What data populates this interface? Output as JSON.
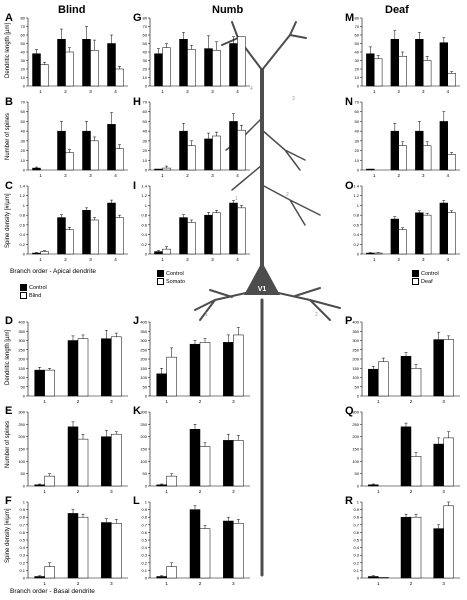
{
  "columns": [
    "Blind",
    "Numb",
    "Deaf"
  ],
  "ylabels": {
    "apical": [
      "Dendritic length [µm]",
      "Number of spines",
      "Spine density [#/µm]"
    ],
    "basal": [
      "Dendritic length [µm]",
      "Number of spines",
      "Spine density [#/µm]"
    ]
  },
  "xlabels": {
    "apical": "Branch order - Apical dendrite",
    "basal": "Branch order - Basal dendrite"
  },
  "legends": {
    "blind": [
      "Control",
      "Blind"
    ],
    "numb": [
      "Control",
      "Somato"
    ],
    "deaf": [
      "Control",
      "Deaf"
    ]
  },
  "neuron_label": "V1",
  "colors": {
    "control": "#000000",
    "treated": "#ffffff",
    "neuron": "#4d4d4d"
  },
  "chart_data": [
    {
      "id": "A",
      "type": "bar",
      "categories": [
        "1",
        "2",
        "3",
        "4"
      ],
      "ylim": [
        0,
        80
      ],
      "ticks": [
        0,
        10,
        20,
        30,
        40,
        50,
        60,
        70,
        80
      ],
      "series": [
        {
          "name": "Control",
          "values": [
            38,
            55,
            55,
            50
          ],
          "err": [
            5,
            12,
            15,
            10
          ]
        },
        {
          "name": "Blind",
          "values": [
            25,
            40,
            42,
            20
          ],
          "err": [
            3,
            5,
            12,
            3
          ]
        }
      ]
    },
    {
      "id": "B",
      "type": "bar",
      "categories": [
        "1",
        "2",
        "3",
        "4"
      ],
      "ylim": [
        0,
        70
      ],
      "ticks": [
        0,
        10,
        20,
        30,
        40,
        50,
        60,
        70
      ],
      "series": [
        {
          "name": "Control",
          "values": [
            2,
            40,
            40,
            47
          ],
          "err": [
            1,
            10,
            10,
            12
          ]
        },
        {
          "name": "Blind",
          "values": [
            0,
            18,
            30,
            22
          ],
          "err": [
            0,
            3,
            4,
            4
          ]
        }
      ]
    },
    {
      "id": "C",
      "type": "bar",
      "categories": [
        "1",
        "2",
        "3",
        "4"
      ],
      "ylim": [
        0,
        1.4
      ],
      "ticks": [
        0,
        0.2,
        0.4,
        0.6,
        0.8,
        1.0,
        1.2,
        1.4
      ],
      "series": [
        {
          "name": "Control",
          "values": [
            0.02,
            0.75,
            0.9,
            1.05
          ],
          "err": [
            0.01,
            0.06,
            0.05,
            0.06
          ]
        },
        {
          "name": "Blind",
          "values": [
            0.05,
            0.5,
            0.7,
            0.75
          ],
          "err": [
            0.02,
            0.05,
            0.05,
            0.05
          ]
        }
      ]
    },
    {
      "id": "G",
      "type": "bar",
      "categories": [
        "1",
        "2",
        "3",
        "4"
      ],
      "ylim": [
        0,
        80
      ],
      "ticks": [
        0,
        10,
        20,
        30,
        40,
        50,
        60,
        70,
        80
      ],
      "series": [
        {
          "name": "Control",
          "values": [
            38,
            55,
            44,
            50
          ],
          "err": [
            6,
            8,
            15,
            8
          ]
        },
        {
          "name": "Somato",
          "values": [
            45,
            43,
            42,
            58
          ],
          "err": [
            5,
            5,
            10,
            0
          ]
        }
      ]
    },
    {
      "id": "H",
      "type": "bar",
      "categories": [
        "1",
        "2",
        "3",
        "4"
      ],
      "ylim": [
        0,
        70
      ],
      "ticks": [
        0,
        10,
        20,
        30,
        40,
        50,
        60,
        70
      ],
      "series": [
        {
          "name": "Control",
          "values": [
            1,
            40,
            32,
            50
          ],
          "err": [
            0,
            8,
            6,
            8
          ]
        },
        {
          "name": "Somato",
          "values": [
            2,
            25,
            35,
            41
          ],
          "err": [
            2,
            5,
            4,
            5
          ]
        }
      ]
    },
    {
      "id": "I",
      "type": "bar",
      "categories": [
        "1",
        "2",
        "3",
        "4"
      ],
      "ylim": [
        0,
        1.4
      ],
      "ticks": [
        0,
        0.2,
        0.4,
        0.6,
        0.8,
        1.0,
        1.2,
        1.4
      ],
      "series": [
        {
          "name": "Control",
          "values": [
            0.05,
            0.75,
            0.8,
            1.05
          ],
          "err": [
            0.02,
            0.06,
            0.06,
            0.05
          ]
        },
        {
          "name": "Somato",
          "values": [
            0.1,
            0.65,
            0.85,
            0.95
          ],
          "err": [
            0.05,
            0.05,
            0.05,
            0.05
          ]
        }
      ]
    },
    {
      "id": "M",
      "type": "bar",
      "categories": [
        "1",
        "2",
        "3",
        "4"
      ],
      "ylim": [
        0,
        80
      ],
      "ticks": [
        0,
        10,
        20,
        30,
        40,
        50,
        60,
        70,
        80
      ],
      "series": [
        {
          "name": "Control",
          "values": [
            38,
            55,
            55,
            51
          ],
          "err": [
            8,
            10,
            8,
            6
          ]
        },
        {
          "name": "Deaf",
          "values": [
            32,
            35,
            30,
            15
          ],
          "err": [
            4,
            5,
            5,
            2
          ]
        }
      ]
    },
    {
      "id": "N",
      "type": "bar",
      "categories": [
        "1",
        "2",
        "3",
        "4"
      ],
      "ylim": [
        0,
        70
      ],
      "ticks": [
        0,
        10,
        20,
        30,
        40,
        50,
        60,
        70
      ],
      "series": [
        {
          "name": "Control",
          "values": [
            1,
            40,
            40,
            50
          ],
          "err": [
            0,
            8,
            10,
            10
          ]
        },
        {
          "name": "Deaf",
          "values": [
            0,
            25,
            25,
            16
          ],
          "err": [
            0,
            4,
            4,
            2
          ]
        }
      ]
    },
    {
      "id": "O",
      "type": "bar",
      "categories": [
        "1",
        "2",
        "3",
        "4"
      ],
      "ylim": [
        0,
        1.4
      ],
      "ticks": [
        0,
        0.2,
        0.4,
        0.6,
        0.8,
        1.0,
        1.2,
        1.4
      ],
      "series": [
        {
          "name": "Control",
          "values": [
            0.02,
            0.72,
            0.85,
            1.05
          ],
          "err": [
            0.01,
            0.05,
            0.04,
            0.05
          ]
        },
        {
          "name": "Deaf",
          "values": [
            0.02,
            0.5,
            0.8,
            0.85
          ],
          "err": [
            0.01,
            0.04,
            0.04,
            0.04
          ]
        }
      ]
    },
    {
      "id": "D",
      "type": "bar",
      "categories": [
        "1",
        "2",
        "3"
      ],
      "ylim": [
        0,
        400
      ],
      "ticks": [
        0,
        50,
        100,
        150,
        200,
        250,
        300,
        350,
        400
      ],
      "series": [
        {
          "name": "Control",
          "values": [
            140,
            300,
            310
          ],
          "err": [
            15,
            25,
            45
          ]
        },
        {
          "name": "Blind",
          "values": [
            140,
            310,
            320
          ],
          "err": [
            10,
            20,
            20
          ]
        }
      ]
    },
    {
      "id": "E",
      "type": "bar",
      "categories": [
        "1",
        "2",
        "3"
      ],
      "ylim": [
        0,
        300
      ],
      "ticks": [
        0,
        50,
        100,
        150,
        200,
        250,
        300
      ],
      "series": [
        {
          "name": "Control",
          "values": [
            5,
            240,
            200
          ],
          "err": [
            3,
            20,
            25
          ]
        },
        {
          "name": "Blind",
          "values": [
            40,
            190,
            210
          ],
          "err": [
            10,
            20,
            10
          ]
        }
      ]
    },
    {
      "id": "F",
      "type": "bar",
      "categories": [
        "1",
        "2",
        "3"
      ],
      "ylim": [
        0,
        1
      ],
      "ticks": [
        0,
        0.1,
        0.2,
        0.3,
        0.4,
        0.5,
        0.6,
        0.7,
        0.8,
        0.9,
        1.0
      ],
      "series": [
        {
          "name": "Control",
          "values": [
            0.02,
            0.85,
            0.73
          ],
          "err": [
            0.01,
            0.05,
            0.05
          ]
        },
        {
          "name": "Blind",
          "values": [
            0.15,
            0.8,
            0.72
          ],
          "err": [
            0.05,
            0.04,
            0.05
          ]
        }
      ]
    },
    {
      "id": "J",
      "type": "bar",
      "categories": [
        "1",
        "2",
        "3"
      ],
      "ylim": [
        0,
        400
      ],
      "ticks": [
        0,
        50,
        100,
        150,
        200,
        250,
        300,
        350,
        400
      ],
      "series": [
        {
          "name": "Control",
          "values": [
            120,
            280,
            290
          ],
          "err": [
            30,
            20,
            40
          ]
        },
        {
          "name": "Somato",
          "values": [
            210,
            290,
            330
          ],
          "err": [
            50,
            20,
            40
          ]
        }
      ]
    },
    {
      "id": "K",
      "type": "bar",
      "categories": [
        "1",
        "2",
        "3"
      ],
      "ylim": [
        0,
        300
      ],
      "ticks": [
        0,
        50,
        100,
        150,
        200,
        250,
        300
      ],
      "series": [
        {
          "name": "Control",
          "values": [
            5,
            230,
            185
          ],
          "err": [
            3,
            20,
            25
          ]
        },
        {
          "name": "Somato",
          "values": [
            40,
            160,
            185
          ],
          "err": [
            10,
            15,
            20
          ]
        }
      ]
    },
    {
      "id": "L",
      "type": "bar",
      "categories": [
        "1",
        "2",
        "3"
      ],
      "ylim": [
        0,
        1
      ],
      "ticks": [
        0,
        0.1,
        0.2,
        0.3,
        0.4,
        0.5,
        0.6,
        0.7,
        0.8,
        0.9,
        1.0
      ],
      "series": [
        {
          "name": "Control",
          "values": [
            0.02,
            0.9,
            0.75
          ],
          "err": [
            0.01,
            0.05,
            0.05
          ]
        },
        {
          "name": "Somato",
          "values": [
            0.15,
            0.65,
            0.72
          ],
          "err": [
            0.05,
            0.04,
            0.05
          ]
        }
      ]
    },
    {
      "id": "P",
      "type": "bar",
      "categories": [
        "1",
        "2",
        "3"
      ],
      "ylim": [
        0,
        400
      ],
      "ticks": [
        0,
        50,
        100,
        150,
        200,
        250,
        300,
        350,
        400
      ],
      "series": [
        {
          "name": "Control",
          "values": [
            145,
            215,
            305
          ],
          "err": [
            15,
            20,
            40
          ]
        },
        {
          "name": "Deaf",
          "values": [
            185,
            150,
            305
          ],
          "err": [
            20,
            20,
            20
          ]
        }
      ]
    },
    {
      "id": "Q",
      "type": "bar",
      "categories": [
        "1",
        "2",
        "3"
      ],
      "ylim": [
        0,
        300
      ],
      "ticks": [
        0,
        50,
        100,
        150,
        200,
        250,
        300
      ],
      "series": [
        {
          "name": "Control",
          "values": [
            5,
            240,
            170
          ],
          "err": [
            3,
            15,
            25
          ]
        },
        {
          "name": "Deaf",
          "values": [
            0,
            120,
            195
          ],
          "err": [
            0,
            15,
            25
          ]
        }
      ]
    },
    {
      "id": "R",
      "type": "bar",
      "categories": [
        "1",
        "2",
        "3"
      ],
      "ylim": [
        0,
        1
      ],
      "ticks": [
        0,
        0.1,
        0.2,
        0.3,
        0.4,
        0.5,
        0.6,
        0.7,
        0.8,
        0.9,
        1.0
      ],
      "series": [
        {
          "name": "Control",
          "values": [
            0.02,
            0.8,
            0.65
          ],
          "err": [
            0.01,
            0.04,
            0.05
          ]
        },
        {
          "name": "Deaf",
          "values": [
            0.01,
            0.8,
            0.95
          ],
          "err": [
            0,
            0.04,
            0.05
          ]
        }
      ]
    }
  ]
}
